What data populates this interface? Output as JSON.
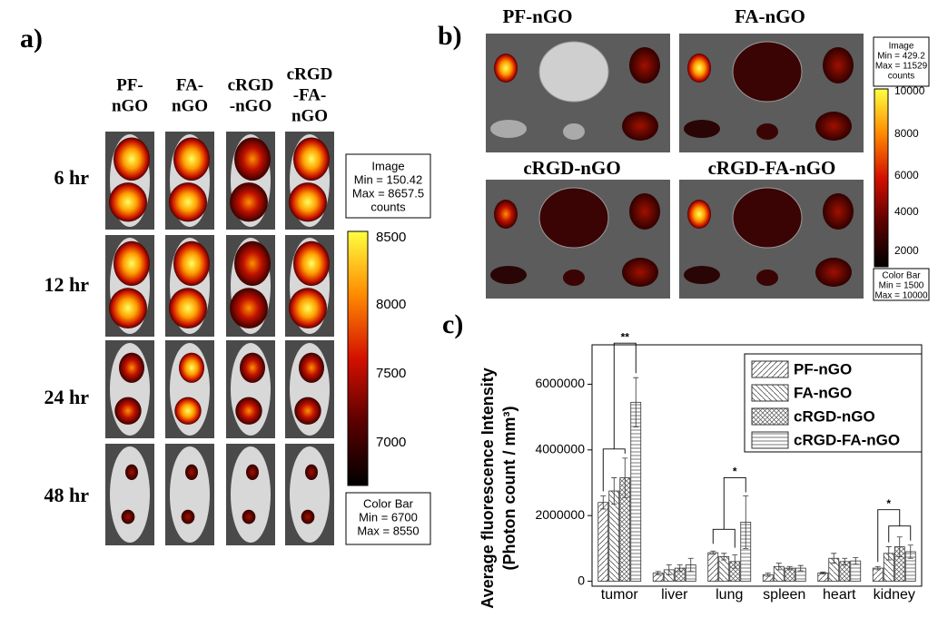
{
  "panel_a": {
    "label": "a)",
    "columns": [
      [
        "PF-",
        "nGO"
      ],
      [
        "FA-",
        "nGO"
      ],
      [
        "cRGD",
        "-nGO"
      ],
      [
        "cRGD",
        "-FA-",
        "nGO"
      ]
    ],
    "rows": [
      "6 hr",
      "12 hr",
      "24 hr",
      "48 hr"
    ],
    "image_info": [
      "Image",
      "Min = 150.42",
      "Max = 8657.5",
      "counts"
    ],
    "colorbar_ticks": [
      8500,
      8000,
      7500,
      7000
    ],
    "color_bar_info": [
      "Color Bar",
      "Min = 6700",
      "Max = 8550"
    ]
  },
  "panel_b": {
    "label": "b)",
    "titles": [
      "PF-nGO",
      "FA-nGO",
      "cRGD-nGO",
      "cRGD-FA-nGO"
    ],
    "image_info": [
      "Image",
      "Min = 429.2",
      "Max = 11529",
      "counts"
    ],
    "colorbar_ticks": [
      10000,
      8000,
      6000,
      4000,
      2000
    ],
    "color_bar_info": [
      "Color Bar",
      "Min = 1500",
      "Max = 10000"
    ]
  },
  "panel_c": {
    "label": "c)"
  },
  "chart_data": {
    "type": "bar",
    "y_label": [
      "Average fluorescence Intensity",
      "(Photon count / mm³)"
    ],
    "categories": [
      "tumor",
      "liver",
      "lung",
      "spleen",
      "heart",
      "kidney"
    ],
    "series": [
      {
        "name": "PF-nGO",
        "color": "#ffffff",
        "hatch": "diagonal-up",
        "values": [
          2400000,
          250000,
          870000,
          200000,
          250000,
          400000
        ],
        "errors": [
          200000,
          50000,
          50000,
          50000,
          30000,
          50000
        ]
      },
      {
        "name": "FA-nGO",
        "color": "#ffffff",
        "hatch": "diagonal-down",
        "values": [
          2750000,
          350000,
          750000,
          450000,
          700000,
          850000
        ],
        "errors": [
          400000,
          150000,
          100000,
          100000,
          150000,
          200000
        ]
      },
      {
        "name": "cRGD-nGO",
        "color": "#ffffff",
        "hatch": "crosshatch",
        "values": [
          3150000,
          400000,
          600000,
          400000,
          600000,
          1050000
        ],
        "errors": [
          600000,
          100000,
          200000,
          50000,
          100000,
          300000
        ]
      },
      {
        "name": "cRGD-FA-nGO",
        "color": "#ffffff",
        "hatch": "horizontal",
        "values": [
          5450000,
          500000,
          1800000,
          400000,
          620000,
          900000
        ],
        "errors": [
          750000,
          200000,
          800000,
          80000,
          100000,
          200000
        ]
      }
    ],
    "annotations": [
      "**",
      "*",
      "*"
    ],
    "ylim": [
      -150000,
      7200000
    ],
    "yticks": [
      0,
      2000000,
      4000000,
      6000000
    ],
    "legend": "upper-right"
  }
}
